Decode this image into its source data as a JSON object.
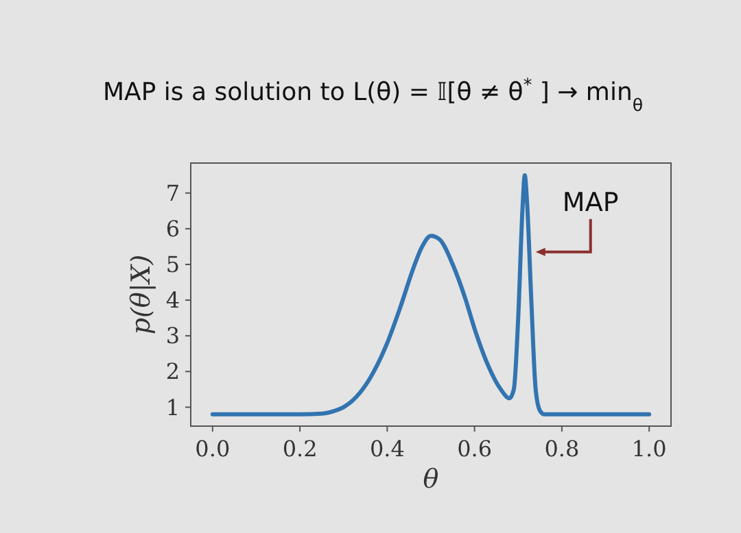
{
  "chart_data": {
    "type": "line",
    "title": "MAP is a solution to  L(θ) = 𝕀[θ ≠ θ$^{*}$] → min$_{θ}$",
    "xlabel": "θ",
    "ylabel": "p(θ|X)",
    "x": [
      0,
      0.1,
      0.2,
      0.25,
      0.28,
      0.3,
      0.33,
      0.36,
      0.4,
      0.43,
      0.46,
      0.48,
      0.5,
      0.52,
      0.55,
      0.58,
      0.6,
      0.63,
      0.66,
      0.68,
      0.69,
      0.7,
      0.71,
      0.715,
      0.72,
      0.73,
      0.74,
      0.75,
      0.76,
      0.8,
      0.9,
      1.0
    ],
    "series": [
      {
        "color": "#3274b0",
        "values": [
          0.8,
          0.8,
          0.8,
          0.82,
          0.9,
          1.0,
          1.3,
          1.8,
          2.8,
          3.8,
          4.9,
          5.5,
          5.8,
          5.7,
          5.0,
          4.0,
          3.2,
          2.2,
          1.5,
          1.25,
          1.5,
          3.5,
          6.6,
          7.5,
          6.8,
          4.0,
          1.5,
          0.9,
          0.8,
          0.8,
          0.8,
          0.8
        ]
      }
    ],
    "xlim": [
      -0.05,
      1.05
    ],
    "ylim": [
      0.47,
      7.84
    ],
    "xticks": [
      {
        "value": 0,
        "label": "0.0"
      },
      {
        "value": 0.2,
        "label": "0.2"
      },
      {
        "value": 0.4,
        "label": "0.4"
      },
      {
        "value": 0.6,
        "label": "0.6"
      },
      {
        "value": 0.8,
        "label": "0.8"
      },
      {
        "value": 1,
        "label": "1.0"
      }
    ],
    "yticks": [
      1,
      2,
      3,
      4,
      5,
      6,
      7
    ],
    "annotations": [
      {
        "text": "MAP",
        "x": 0.74,
        "y": 5.35
      }
    ],
    "grid": false
  }
}
